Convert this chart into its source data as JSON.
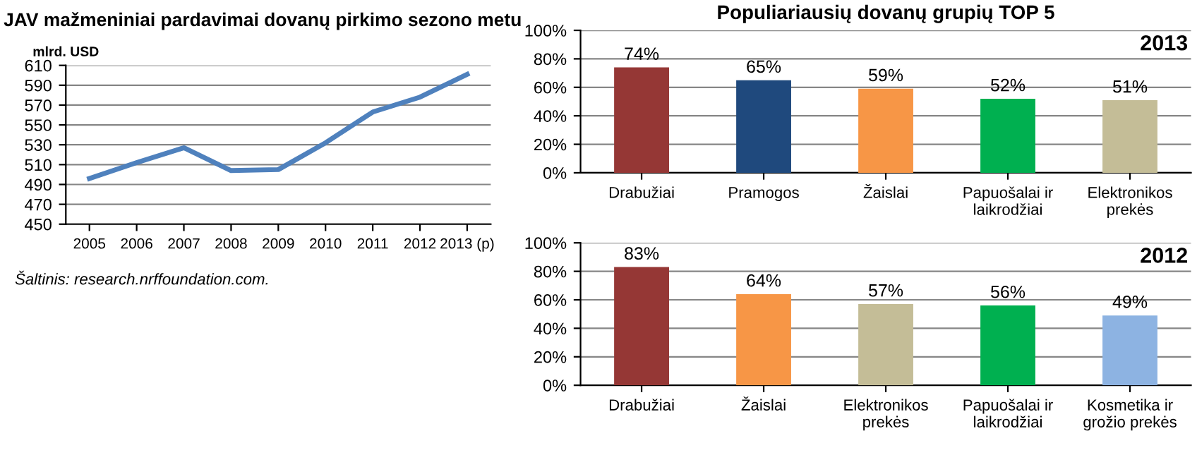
{
  "chart_data": [
    {
      "type": "line",
      "title": "JAV mažmeniniai pardavimai dovanų pirkimo sezono metu",
      "ylabel": "mlrd. USD",
      "categories": [
        "2005",
        "2006",
        "2007",
        "2008",
        "2009",
        "2010",
        "2011",
        "2012",
        "2013 (p)"
      ],
      "series": [
        {
          "color": "#4f81bd",
          "values": [
            496,
            512,
            527,
            504,
            505,
            532,
            563,
            578,
            601
          ]
        }
      ],
      "ylim": [
        450,
        610
      ],
      "yticks": [
        450,
        470,
        490,
        510,
        530,
        550,
        570,
        590,
        610
      ],
      "grid": "y",
      "marker": "none",
      "line_style": "solid",
      "annotations": [
        "Šaltinis: research.nrffoundation.com."
      ]
    },
    {
      "type": "bar",
      "title": "Populiariausių dovanų grupių TOP 5",
      "categories": [
        "Drabužiai",
        "Pramogos",
        "Žaislai",
        "Papuošalai ir\nlaikrodžiai",
        "Elektronikos\nprekės"
      ],
      "values": [
        74,
        65,
        59,
        52,
        51
      ],
      "value_labels": [
        "74%",
        "65%",
        "59%",
        "52%",
        "51%"
      ],
      "colors": [
        "#953735",
        "#1f497d",
        "#f79646",
        "#00b050",
        "#c4bd97"
      ],
      "ylim": [
        0,
        100
      ],
      "yticks": [
        {
          "value": 0,
          "label": "0%"
        },
        {
          "value": 20,
          "label": "20%"
        },
        {
          "value": 40,
          "label": "40%"
        },
        {
          "value": 60,
          "label": "60%"
        },
        {
          "value": 80,
          "label": "80%"
        },
        {
          "value": 100,
          "label": "100%"
        }
      ],
      "grid": "y",
      "annotations": [
        "2013"
      ]
    },
    {
      "type": "bar",
      "categories": [
        "Drabužiai",
        "Žaislai",
        "Elektronikos\nprekės",
        "Papuošalai ir\nlaikrodžiai",
        "Kosmetika ir\ngrožio prekės"
      ],
      "values": [
        83,
        64,
        57,
        56,
        49
      ],
      "value_labels": [
        "83%",
        "64%",
        "57%",
        "56%",
        "49%"
      ],
      "colors": [
        "#953735",
        "#f79646",
        "#c4bd97",
        "#00b050",
        "#8db3e2"
      ],
      "ylim": [
        0,
        100
      ],
      "yticks": [
        {
          "value": 0,
          "label": "0%"
        },
        {
          "value": 20,
          "label": "20%"
        },
        {
          "value": 40,
          "label": "40%"
        },
        {
          "value": 60,
          "label": "60%"
        },
        {
          "value": 80,
          "label": "80%"
        },
        {
          "value": 100,
          "label": "100%"
        }
      ],
      "grid": "y",
      "annotations": [
        "2012"
      ]
    }
  ]
}
